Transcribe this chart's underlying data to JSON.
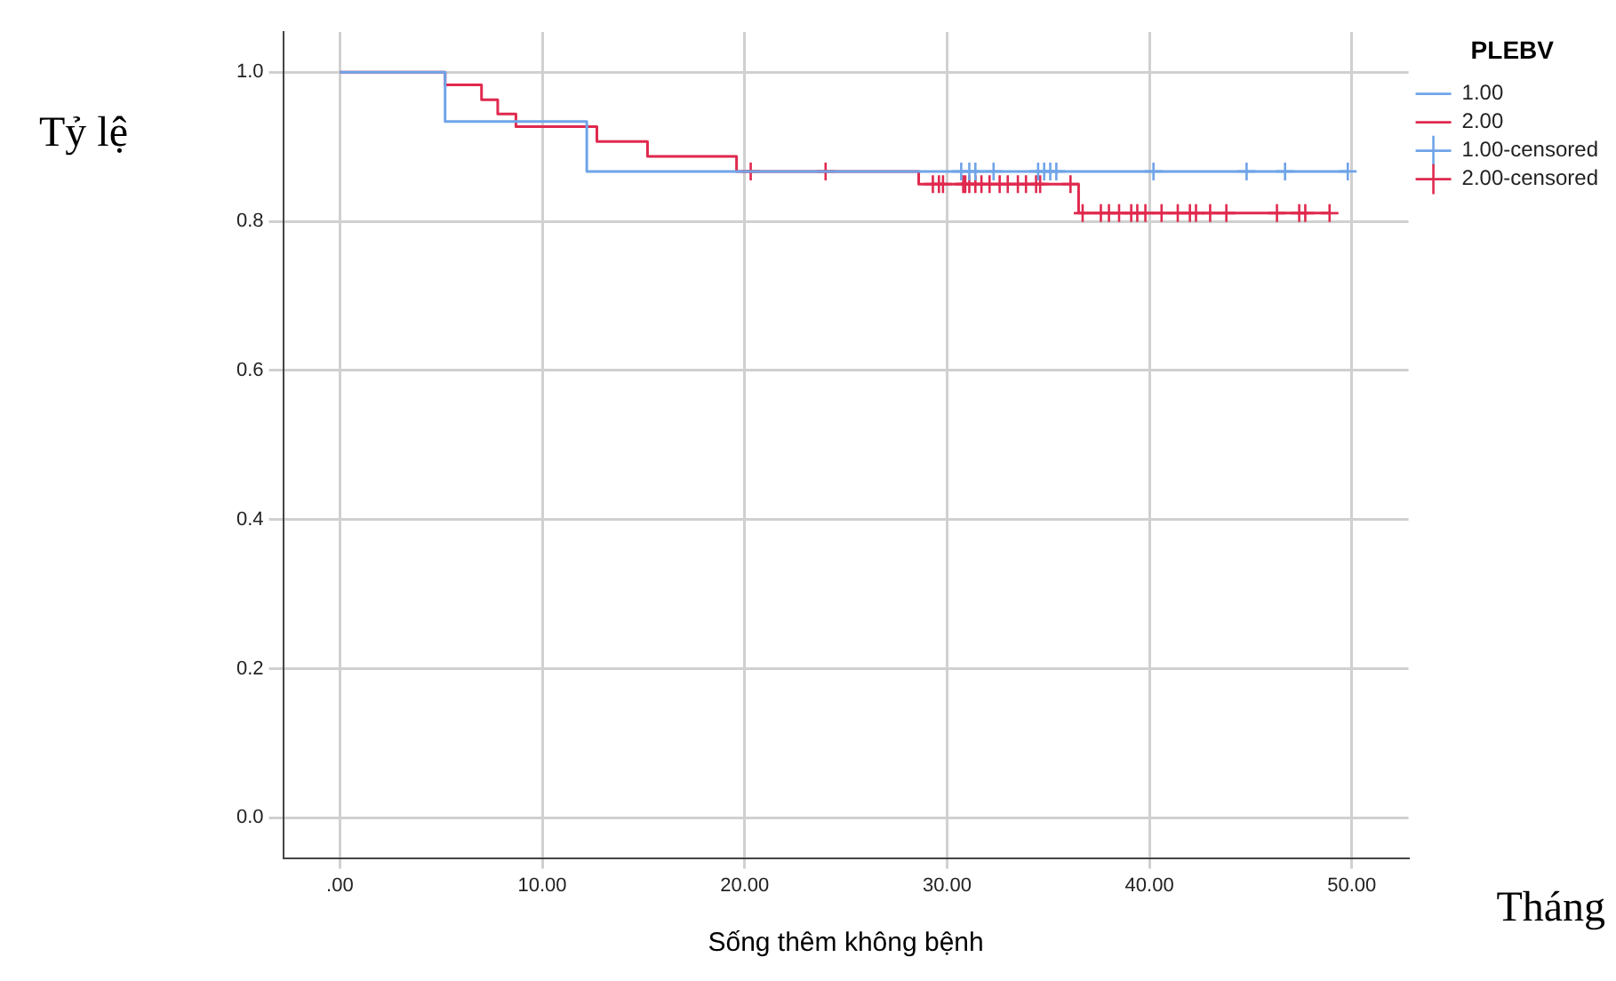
{
  "chart_data": {
    "type": "step",
    "xlabel": "Sống thêm không bệnh",
    "ylabel": "Tỷ lệ",
    "legend_title": "PLEBV",
    "annotations": [
      "Tháng"
    ],
    "xlim": [
      -2.8,
      52.8
    ],
    "ylim": [
      -0.054,
      1.054
    ],
    "xticks": [
      {
        "value": 0,
        "label": ".00"
      },
      {
        "value": 10,
        "label": "10.00"
      },
      {
        "value": 20,
        "label": "20.00"
      },
      {
        "value": 30,
        "label": "30.00"
      },
      {
        "value": 40,
        "label": "40.00"
      },
      {
        "value": 50,
        "label": "50.00"
      }
    ],
    "yticks": [
      {
        "value": 0,
        "label": "0.0"
      },
      {
        "value": 0.2,
        "label": "0.2"
      },
      {
        "value": 0.4,
        "label": "0.4"
      },
      {
        "value": 0.6,
        "label": "0.6"
      },
      {
        "value": 0.8,
        "label": "0.8"
      },
      {
        "value": 1,
        "label": "1.0"
      }
    ],
    "grid": true,
    "legend": "right",
    "series": [
      {
        "name": "1.00",
        "color": "#6fa4e8",
        "marker": "none",
        "x": [
          0,
          5.2,
          12.2,
          49.8
        ],
        "values": [
          1,
          0.934,
          0.867,
          0.867
        ]
      },
      {
        "name": "2.00",
        "color": "#e0294e",
        "marker": "none",
        "x": [
          0,
          5.2,
          7.0,
          7.8,
          8.7,
          12.7,
          15.2,
          19.6,
          28.6,
          36.5,
          48.9
        ],
        "values": [
          1,
          0.983,
          0.963,
          0.944,
          0.927,
          0.907,
          0.887,
          0.867,
          0.85,
          0.811,
          0.811
        ]
      },
      {
        "name": "1.00-censored",
        "type": "scatter",
        "color": "#6fa4e8",
        "marker": "cross",
        "x": [
          30.7,
          31.1,
          31.4,
          32.3,
          34.5,
          34.8,
          35.1,
          35.4,
          40.2,
          44.8,
          46.7,
          49.8
        ],
        "values": [
          0.867,
          0.867,
          0.867,
          0.867,
          0.867,
          0.867,
          0.867,
          0.867,
          0.867,
          0.867,
          0.867,
          0.867
        ]
      },
      {
        "name": "2.00-censored",
        "type": "scatter",
        "color": "#e0294e",
        "marker": "cross",
        "x": [
          20.3,
          24.0,
          29.3,
          29.6,
          29.8,
          30.8,
          30.9,
          31.1,
          31.4,
          31.7,
          32.1,
          32.6,
          33.0,
          33.5,
          33.9,
          34.4,
          34.6,
          36.1,
          36.7,
          37.6,
          38.0,
          38.5,
          39.1,
          39.4,
          39.8,
          40.6,
          41.4,
          42.0,
          42.3,
          43.0,
          43.8,
          46.3,
          47.4,
          47.7,
          48.9
        ],
        "values": [
          0.867,
          0.867,
          0.85,
          0.85,
          0.85,
          0.85,
          0.85,
          0.85,
          0.85,
          0.85,
          0.85,
          0.85,
          0.85,
          0.85,
          0.85,
          0.85,
          0.85,
          0.85,
          0.811,
          0.811,
          0.811,
          0.811,
          0.811,
          0.811,
          0.811,
          0.811,
          0.811,
          0.811,
          0.811,
          0.811,
          0.811,
          0.811,
          0.811,
          0.811,
          0.811
        ]
      }
    ]
  }
}
